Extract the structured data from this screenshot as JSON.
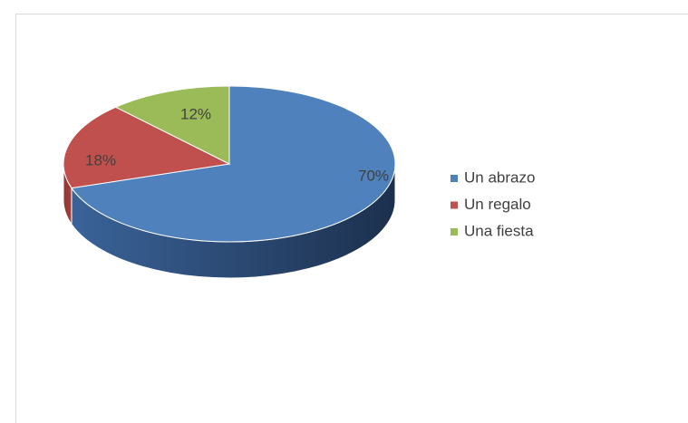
{
  "chart_data": {
    "type": "pie",
    "categories": [
      "Un abrazo",
      "Un regalo",
      "Una fiesta"
    ],
    "values": [
      70,
      18,
      12
    ],
    "value_labels": [
      "70%",
      "18%",
      "12%"
    ],
    "colors": [
      "#4f81bd",
      "#c0504d",
      "#9bbb59"
    ],
    "legend": "right"
  }
}
